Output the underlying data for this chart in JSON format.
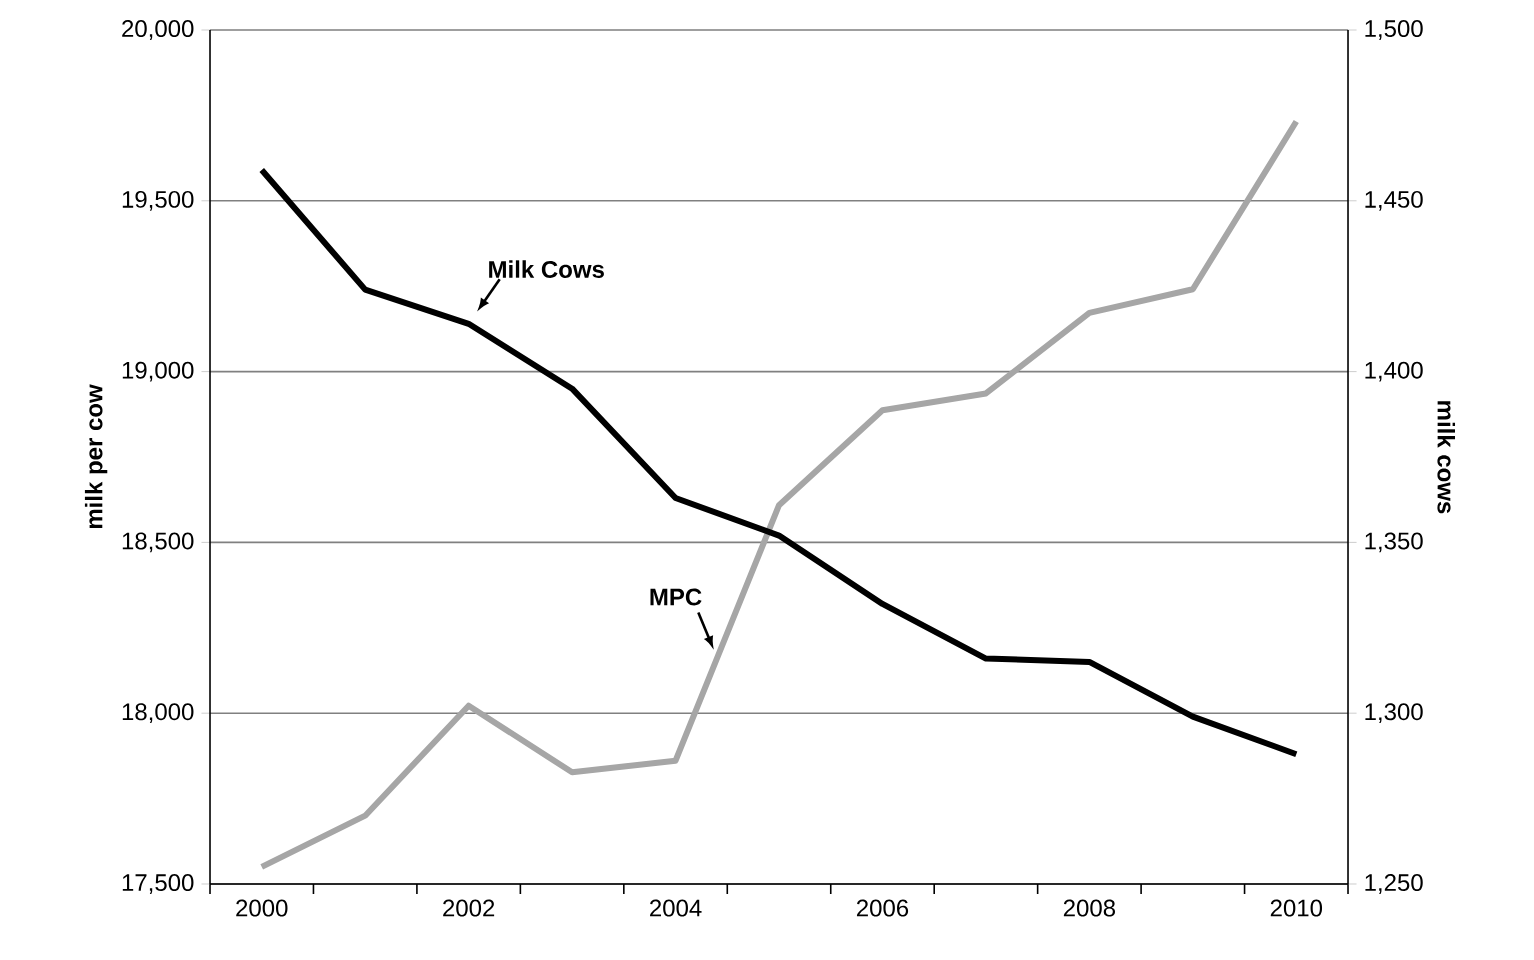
{
  "chart_data": {
    "type": "line",
    "categories": [
      "2000",
      null,
      "2002",
      null,
      "2004",
      null,
      "2006",
      null,
      "2008",
      null,
      "2010"
    ],
    "ylabel": "milk per cow",
    "y2label": "milk cows",
    "series": [
      {
        "name": "Milk Cows",
        "color": "#000000",
        "axis": "y2",
        "values": [
          1459,
          1424,
          1414,
          1395,
          1363,
          1352,
          1332,
          1316,
          1315,
          1299,
          1288
        ]
      },
      {
        "name": "MPC",
        "color": "#a6a6a6",
        "values": [
          17550,
          17700,
          18022,
          17827,
          17861,
          18609,
          18887,
          18936,
          19172,
          19241,
          19732
        ]
      }
    ],
    "ylim": [
      17500,
      20000
    ],
    "yticks": [
      {
        "value": 17500,
        "label": "17,500"
      },
      {
        "value": 18000,
        "label": "18,000"
      },
      {
        "value": 18500,
        "label": "18,500"
      },
      {
        "value": 19000,
        "label": "19,000"
      },
      {
        "value": 19500,
        "label": "19,500"
      },
      {
        "value": 20000,
        "label": "20,000"
      }
    ],
    "y2lim": [
      1250,
      1500
    ],
    "y2ticks": [
      {
        "value": 1250,
        "label": "1,250"
      },
      {
        "value": 1300,
        "label": "1,300"
      },
      {
        "value": 1350,
        "label": "1,350"
      },
      {
        "value": 1400,
        "label": "1,400"
      },
      {
        "value": 1450,
        "label": "1,450"
      },
      {
        "value": 1500,
        "label": "1,500"
      }
    ],
    "grid": "y",
    "legend": false,
    "marker": "none",
    "line_style": "solid"
  }
}
